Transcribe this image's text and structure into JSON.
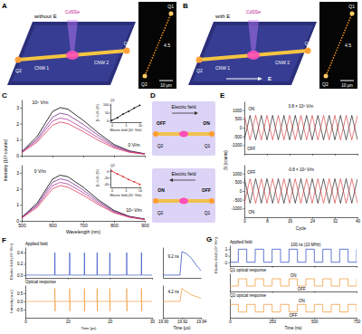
{
  "panel_labels": [
    "A",
    "B",
    "C",
    "D",
    "E",
    "F",
    "G"
  ],
  "schematics": [
    {
      "title": "without E",
      "source": "CdSSe",
      "wires": [
        "CNW 1",
        "CNW 2"
      ],
      "ends": [
        "Q1",
        "Q2"
      ],
      "inset": {
        "ends": [
          "Q1",
          "Q2"
        ],
        "label": "4.5",
        "scale": "10 μm"
      }
    },
    {
      "title": "with E",
      "field": "E",
      "source": "CdSSe",
      "wires": [
        "CNW 1",
        "CNW 2"
      ],
      "ends": [
        "Q1",
        "Q2"
      ],
      "inset": {
        "ends": [
          "Q1",
          "Q2"
        ],
        "label": "4.5",
        "scale": "10 μm"
      }
    }
  ],
  "switches": [
    {
      "field": "Electric field",
      "states": [
        "OFF",
        "ON"
      ],
      "ends": [
        "Q1",
        "Q2"
      ]
    },
    {
      "field": "Electric field",
      "states": [
        "ON",
        "OFF"
      ],
      "ends": [
        "Q1",
        "Q2"
      ]
    }
  ],
  "chart_data": [
    {
      "type": "line",
      "ylabel": "Intensity (10³ counts)",
      "x": [
        500,
        550,
        600,
        625,
        650,
        700,
        750,
        800,
        850,
        900
      ],
      "xlim": [
        500,
        900
      ],
      "xticks": [
        500,
        600,
        700,
        800,
        900
      ],
      "ylim": [
        0,
        3.5
      ],
      "yticks": [
        0,
        1,
        2,
        3
      ],
      "tick_labels": "y",
      "series": [
        {
          "color": "#000000",
          "values": [
            0.25,
            1.2,
            2.75,
            3.0,
            2.9,
            2.2,
            1.4,
            0.7,
            0.3,
            0.12
          ]
        },
        {
          "color": "#7b2d8e",
          "values": [
            0.22,
            1.05,
            2.4,
            2.65,
            2.55,
            1.95,
            1.25,
            0.62,
            0.27,
            0.11
          ]
        },
        {
          "color": "#b03a9a",
          "values": [
            0.2,
            0.95,
            2.15,
            2.35,
            2.25,
            1.7,
            1.1,
            0.55,
            0.24,
            0.1
          ]
        },
        {
          "color": "#e03a5a",
          "values": [
            0.18,
            0.85,
            1.9,
            2.1,
            2.0,
            1.5,
            0.95,
            0.48,
            0.21,
            0.09
          ]
        }
      ],
      "annotations": [
        {
          "text": "10⁶ V/m",
          "x": 560,
          "y": 3.2
        },
        {
          "text": "0 V/m",
          "x": 865,
          "y": 0.55
        }
      ]
    },
    {
      "type": "line",
      "xlabel": "Wavelength (nm)",
      "x": [
        500,
        550,
        600,
        625,
        650,
        700,
        750,
        800,
        850,
        900
      ],
      "xlim": [
        500,
        900
      ],
      "xticks": [
        500,
        600,
        700,
        800,
        900
      ],
      "ylim": [
        0,
        3.5
      ],
      "yticks": [
        0,
        1,
        2,
        3
      ],
      "series": [
        {
          "color": "#000000",
          "values": [
            0.22,
            1.1,
            2.6,
            2.85,
            2.75,
            2.1,
            1.3,
            0.65,
            0.28,
            0.11
          ]
        },
        {
          "color": "#7b2d8e",
          "values": [
            0.21,
            1.0,
            2.4,
            2.62,
            2.52,
            1.92,
            1.2,
            0.6,
            0.26,
            0.1
          ]
        },
        {
          "color": "#b03a9a",
          "values": [
            0.19,
            0.92,
            2.2,
            2.4,
            2.3,
            1.76,
            1.1,
            0.55,
            0.24,
            0.09
          ]
        },
        {
          "color": "#e03a5a",
          "values": [
            0.17,
            0.84,
            2.0,
            2.2,
            2.1,
            1.6,
            1.0,
            0.5,
            0.22,
            0.08
          ]
        }
      ],
      "annotations": [
        {
          "text": "0 V/m",
          "x": 560,
          "y": 3.0
        },
        {
          "text": "10⁶ V/m",
          "x": 865,
          "y": 0.55
        }
      ]
    },
    {
      "type": "line",
      "marker": "circle",
      "title": "Q1",
      "xlabel": "Electric field (10⁵ V/m)",
      "ylabel": "(Iₑ−I₀)/I₀ (%)",
      "x": [
        0,
        2,
        4,
        6,
        8,
        10
      ],
      "xlim": [
        -0.5,
        10.5
      ],
      "xticks": [
        0,
        5,
        10
      ],
      "ylim": [
        -10,
        110
      ],
      "yticks": [
        0,
        50,
        100
      ],
      "series": [
        {
          "color": "#000000",
          "values": [
            2,
            18,
            41,
            58,
            79,
            97
          ]
        }
      ]
    },
    {
      "type": "line",
      "marker": "circle",
      "title": "Q2",
      "xlabel": "Electric field (10⁵ V/m)",
      "ylabel": "(Iₑ−I₀)/I₀ (%)",
      "x": [
        0,
        2,
        4,
        6,
        8,
        10
      ],
      "xlim": [
        -0.5,
        10.5
      ],
      "xticks": [
        0,
        5,
        10
      ],
      "ylim": [
        -50,
        8
      ],
      "yticks": [
        -40,
        -20,
        0
      ],
      "series": [
        {
          "color": "#d62728",
          "values": [
            0,
            -9,
            -17,
            -26,
            -33,
            -41
          ]
        }
      ]
    },
    {
      "type": "line",
      "ylabel": "ΔI (counts)",
      "x": [
        0,
        2,
        4,
        6,
        8,
        10,
        12,
        14,
        16,
        18,
        20,
        22,
        24,
        26,
        28,
        30,
        32,
        34,
        36,
        38,
        40
      ],
      "xlim": [
        0,
        40
      ],
      "xticks": [
        0,
        8,
        16,
        24,
        32,
        40
      ],
      "ylim": [
        -1500,
        1500
      ],
      "yticks": [
        -1000,
        -500,
        0,
        500,
        1000
      ],
      "tick_labels": "y",
      "series": [
        {
          "color": "#000000",
          "values": [
            -700,
            700,
            -700,
            700,
            -700,
            700,
            -700,
            700,
            -700,
            700,
            -700,
            700,
            -700,
            700,
            -700,
            700,
            -700,
            700,
            -700,
            700,
            -700
          ]
        },
        {
          "color": "#d62728",
          "values": [
            700,
            -700,
            700,
            -700,
            700,
            -700,
            700,
            -700,
            700,
            -700,
            700,
            -700,
            700,
            -700,
            700,
            -700,
            700,
            -700,
            700,
            -700,
            700
          ]
        }
      ],
      "annotations": [
        {
          "text": "0.8 × 10⁶ V/m",
          "x": 20,
          "y": 1150
        },
        {
          "text": "ON",
          "x": 2.5,
          "y": 1000
        },
        {
          "text": "OFF",
          "x": 2.5,
          "y": -1300
        }
      ]
    },
    {
      "type": "line",
      "xlabel": "Cycle",
      "x": [
        0,
        2,
        4,
        6,
        8,
        10,
        12,
        14,
        16,
        18,
        20,
        22,
        24,
        26,
        28,
        30,
        32,
        34,
        36,
        38,
        40
      ],
      "xlim": [
        0,
        40
      ],
      "xticks": [
        0,
        8,
        16,
        24,
        32,
        40
      ],
      "ylim": [
        -1500,
        1500
      ],
      "yticks": [
        -1000,
        -500,
        0,
        500,
        1000
      ],
      "series": [
        {
          "color": "#000000",
          "values": [
            700,
            -700,
            700,
            -700,
            700,
            -700,
            700,
            -700,
            700,
            -700,
            700,
            -700,
            700,
            -700,
            700,
            -700,
            700,
            -700,
            700,
            -700,
            700
          ]
        },
        {
          "color": "#d62728",
          "values": [
            -700,
            700,
            -700,
            700,
            -700,
            700,
            -700,
            700,
            -700,
            700,
            -700,
            700,
            -700,
            700,
            -700,
            700,
            -700,
            700,
            -700,
            700,
            -700
          ]
        }
      ],
      "annotations": [
        {
          "text": "-0.8 × 10⁶ V/m",
          "x": 20,
          "y": 1150
        },
        {
          "text": "OFF",
          "x": 2.5,
          "y": 1000
        },
        {
          "text": "ON",
          "x": 2.5,
          "y": -1300
        }
      ]
    },
    {
      "type": "line",
      "title": "Applied field",
      "ylabel": "Electric field (10⁶ V/m)",
      "x": [
        0,
        6.95,
        7,
        7.05,
        10.45,
        10.5,
        10.55,
        13.95,
        14,
        14.05,
        16.95,
        17,
        17.05,
        19.95,
        20,
        20.05,
        23.95,
        24,
        24.05,
        27.45,
        27.5,
        27.55,
        30
      ],
      "xlim": [
        0,
        30
      ],
      "xticks": [
        0,
        10,
        20,
        30
      ],
      "ylim": [
        -0.05,
        0.5
      ],
      "yticks": [
        {
          "value": 0,
          "label": "0.0"
        },
        0.2,
        0.4
      ],
      "tick_labels": "y",
      "series": [
        {
          "color": "#1f3fbf",
          "values": [
            0,
            0,
            0.4,
            0,
            0,
            0.4,
            0,
            0,
            0.4,
            0,
            0,
            0.4,
            0,
            0,
            0.4,
            0,
            0,
            0.4,
            0,
            0,
            0.4,
            0,
            0
          ]
        }
      ]
    },
    {
      "type": "line",
      "title": "Optical response",
      "ylabel": "Intensity (a.u.)",
      "xlabel": "Time (μs)",
      "x": [
        0,
        6.95,
        7,
        7.05,
        7.1,
        10.45,
        10.5,
        10.55,
        10.6,
        13.95,
        14,
        14.05,
        14.1,
        16.95,
        17,
        17.05,
        17.1,
        19.95,
        20,
        20.05,
        20.1,
        23.95,
        24,
        24.05,
        24.1,
        27.45,
        27.5,
        27.55,
        27.6,
        30
      ],
      "xlim": [
        0,
        30
      ],
      "xticks": [
        0,
        10,
        20,
        30
      ],
      "ylim": [
        -1,
        1
      ],
      "yticks": [
        -0.5,
        {
          "value": 0,
          "label": "0.0"
        },
        0.5
      ],
      "series": [
        {
          "color": "#f0922b",
          "values": [
            0,
            0,
            0.8,
            -0.6,
            0,
            0,
            0.8,
            -0.6,
            0,
            0,
            0.8,
            -0.6,
            0,
            0,
            0.8,
            -0.6,
            0,
            0,
            0.8,
            -0.6,
            0,
            0,
            0.8,
            -0.6,
            0,
            0,
            0.8,
            -0.6,
            0,
            0
          ]
        }
      ]
    },
    {
      "type": "line",
      "x": [
        19.9,
        19.918,
        19.92,
        19.925,
        19.93,
        19.935,
        19.94
      ],
      "xlim": [
        19.9,
        19.94
      ],
      "ylim": [
        -0.05,
        0.5
      ],
      "tick_labels": false,
      "series": [
        {
          "color": "#1f3fbf",
          "values": [
            0,
            0,
            0.42,
            0.38,
            0.3,
            0.18,
            0.08
          ]
        }
      ],
      "annotations": [
        {
          "text": "9.2 ns",
          "x": 19.911,
          "y": 0.3
        }
      ]
    },
    {
      "type": "line",
      "xlabel": "Time (μs)",
      "x": [
        19.9,
        19.918,
        19.92,
        19.922,
        19.93,
        19.94
      ],
      "xlim": [
        19.9,
        19.94
      ],
      "xticks": [
        {
          "value": 19.9,
          "label": "19.90"
        },
        19.92,
        19.94
      ],
      "ylim": [
        -1,
        1
      ],
      "tick_labels": "x",
      "series": [
        {
          "color": "#f0922b",
          "values": [
            0,
            0,
            0.8,
            0.7,
            0.4,
            0.2
          ]
        }
      ],
      "annotations": [
        {
          "text": "4.2 ns",
          "x": 19.911,
          "y": 0.5
        }
      ]
    },
    {
      "type": "line",
      "line_style": "step",
      "title": "Applied field",
      "ylabel": "Electric field (10⁶ V/m)",
      "x": [
        0,
        50,
        100,
        150,
        200,
        250,
        300,
        350,
        400,
        450,
        500,
        550,
        600,
        650,
        700,
        750
      ],
      "xlim": [
        0,
        750
      ],
      "xticks": [
        0,
        250,
        500,
        750
      ],
      "ylim": [
        -1.6,
        1.6
      ],
      "yticks": [
        -1,
        0,
        1
      ],
      "tick_labels": "y",
      "series": [
        {
          "color": "#1f3fbf",
          "values": [
            -1,
            1,
            -1,
            1,
            -1,
            1,
            -1,
            1,
            -1,
            1,
            -1,
            1,
            -1,
            1,
            -1,
            1
          ]
        }
      ],
      "annotations": [
        {
          "text": "100 ns (10 MHz)",
          "x": 450,
          "y": 1.4
        }
      ]
    },
    {
      "type": "line",
      "line_style": "step",
      "title": "Q1 optical response",
      "x": [
        0,
        50,
        100,
        150,
        200,
        250,
        300,
        350,
        400,
        450,
        500,
        550,
        600,
        650,
        700,
        750
      ],
      "xlim": [
        0,
        750
      ],
      "xticks": [
        0,
        250,
        500,
        750
      ],
      "ylim": [
        0,
        1
      ],
      "tick_labels": false,
      "series": [
        {
          "color": "#f0922b",
          "values": [
            0.3,
            0.7,
            0.3,
            0.7,
            0.3,
            0.7,
            0.3,
            0.7,
            0.3,
            0.7,
            0.3,
            0.7,
            0.3,
            0.7,
            0.3,
            0.7
          ]
        }
      ],
      "annotations": [
        {
          "text": "ON",
          "x": 375,
          "y": 0.8
        },
        {
          "text": "OFF",
          "x": 425,
          "y": 0.06
        }
      ]
    },
    {
      "type": "line",
      "line_style": "step",
      "title": "Q2 optical response",
      "xlabel": "Time (ns)",
      "x": [
        0,
        50,
        100,
        150,
        200,
        250,
        300,
        350,
        400,
        450,
        500,
        550,
        600,
        650,
        700,
        750
      ],
      "xlim": [
        0,
        750
      ],
      "xticks": [
        0,
        250,
        500,
        750
      ],
      "ylim": [
        0,
        1
      ],
      "tick_labels": "x",
      "series": [
        {
          "color": "#f0922b",
          "values": [
            0.7,
            0.3,
            0.7,
            0.3,
            0.7,
            0.3,
            0.7,
            0.3,
            0.7,
            0.3,
            0.7,
            0.3,
            0.7,
            0.3,
            0.7,
            0.3
          ]
        }
      ],
      "annotations": [
        {
          "text": "OFF",
          "x": 375,
          "y": 0.06
        },
        {
          "text": "ON",
          "x": 425,
          "y": 0.8
        }
      ]
    }
  ]
}
